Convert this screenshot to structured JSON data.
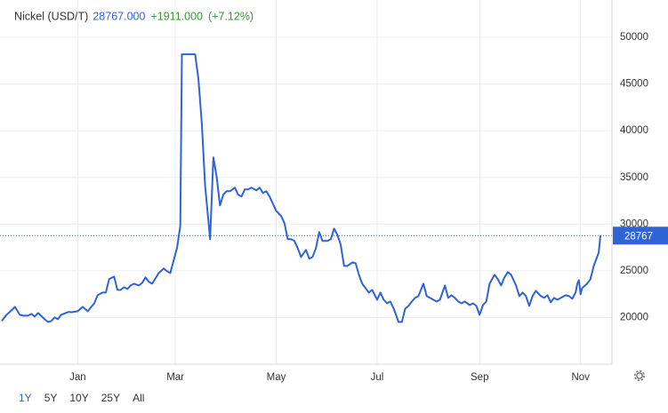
{
  "chart_data": {
    "type": "line",
    "title": "Nickel (USD/T)",
    "quote": {
      "price": "28767.000",
      "change": "+1911.000",
      "change_pct": "(+7.12%)"
    },
    "x": [
      -46,
      -43,
      -40,
      -38,
      -35,
      -33,
      -30,
      -28,
      -26,
      -24,
      -20,
      -18,
      -16,
      -14,
      -12,
      -10,
      -6,
      -3,
      0,
      3,
      6,
      10,
      12,
      15,
      17,
      19,
      22,
      24,
      26,
      28,
      30,
      32,
      34,
      37,
      39,
      41,
      43,
      45,
      47,
      49,
      52,
      54,
      56,
      58,
      60,
      62,
      63,
      68,
      71,
      73,
      75,
      77,
      80,
      82,
      84,
      86,
      88,
      90,
      92,
      95,
      97,
      99,
      101,
      103,
      105,
      108,
      110,
      112,
      114,
      116,
      118,
      120,
      123,
      125,
      127,
      129,
      131,
      133,
      135,
      138,
      140,
      142,
      144,
      146,
      148,
      151,
      153,
      155,
      157,
      159,
      161,
      163,
      166,
      168,
      170,
      172,
      174,
      176,
      178,
      181,
      183,
      185,
      187,
      189,
      191,
      194,
      196,
      198,
      200,
      202,
      204,
      206,
      209,
      211,
      213,
      215,
      217,
      219,
      222,
      224,
      226,
      228,
      230,
      232,
      234,
      237,
      239,
      241,
      243,
      245,
      247,
      249,
      252,
      254,
      256,
      258,
      260,
      262,
      265,
      267,
      269,
      271,
      273,
      275,
      277,
      280,
      282,
      284,
      286,
      288,
      290,
      292,
      295,
      297,
      299,
      301,
      302,
      303,
      304,
      305,
      308,
      310,
      312,
      315,
      316
    ],
    "series": [
      {
        "name": "Nickel (USD/T)",
        "color": "#2f63d6",
        "values": [
          19620,
          20290,
          20760,
          21140,
          20290,
          20190,
          20190,
          20380,
          20100,
          20480,
          19810,
          19520,
          19620,
          20000,
          19810,
          20290,
          20570,
          20570,
          20670,
          21140,
          20670,
          21520,
          22380,
          22670,
          22670,
          24100,
          24380,
          22950,
          22950,
          23240,
          23050,
          23430,
          23620,
          23430,
          23710,
          24290,
          23810,
          23620,
          24190,
          24760,
          25240,
          24950,
          24760,
          26100,
          27430,
          29810,
          48190,
          48190,
          48190,
          45520,
          40760,
          34100,
          28380,
          37140,
          35050,
          32000,
          33140,
          33520,
          33520,
          33900,
          33140,
          32950,
          33710,
          33710,
          33900,
          33620,
          33900,
          33330,
          33520,
          32950,
          32190,
          31430,
          30860,
          30100,
          28380,
          28380,
          28190,
          27430,
          26480,
          27240,
          26290,
          26480,
          27430,
          29140,
          28190,
          28190,
          28380,
          29520,
          28860,
          27810,
          25520,
          25520,
          25900,
          25810,
          24570,
          23620,
          23140,
          22670,
          22950,
          21900,
          22670,
          21900,
          21520,
          21710,
          20950,
          19520,
          19520,
          20950,
          21240,
          21710,
          22100,
          22290,
          23620,
          22290,
          22100,
          21900,
          21710,
          21900,
          23430,
          22100,
          22380,
          22100,
          21710,
          21520,
          21710,
          21330,
          21520,
          21240,
          20290,
          21330,
          21710,
          23620,
          24570,
          24100,
          23430,
          24290,
          24860,
          24570,
          23430,
          22290,
          22670,
          22290,
          21240,
          22290,
          22860,
          22290,
          22100,
          22380,
          21620,
          22100,
          21900,
          22100,
          22380,
          22290,
          22000,
          22670,
          23620,
          24000,
          22480,
          23140,
          23620,
          24100,
          25520,
          26950,
          28767
        ]
      }
    ],
    "xlim": [
      -47,
      323
    ],
    "xticks": [
      {
        "value": 0,
        "label": "Jan"
      },
      {
        "value": 59,
        "label": "Mar"
      },
      {
        "value": 120,
        "label": "May"
      },
      {
        "value": 181,
        "label": "Jul"
      },
      {
        "value": 243,
        "label": "Sep"
      },
      {
        "value": 304,
        "label": "Nov"
      }
    ],
    "ylim": [
      15000,
      54000
    ],
    "yticks": [
      20000,
      25000,
      30000,
      35000,
      40000,
      45000,
      50000
    ],
    "grid": true,
    "ranges": [
      "1Y",
      "5Y",
      "10Y",
      "25Y",
      "All"
    ]
  }
}
